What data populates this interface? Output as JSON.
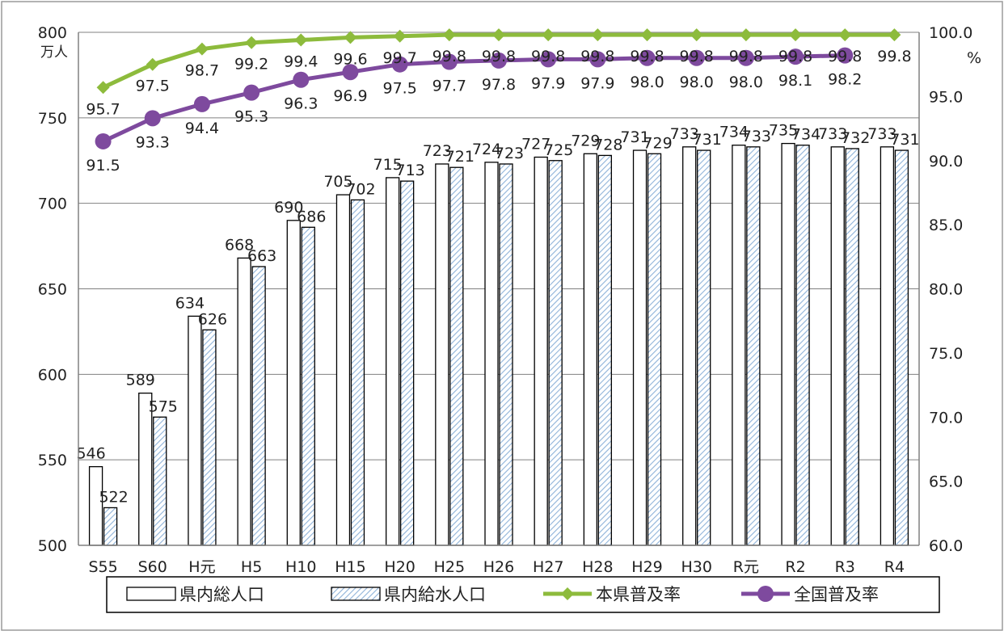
{
  "chart_data": {
    "type": "bar",
    "categories": [
      "S55",
      "S60",
      "H元",
      "H5",
      "H10",
      "H15",
      "H20",
      "H25",
      "H26",
      "H27",
      "H28",
      "H29",
      "H30",
      "R元",
      "R2",
      "R3",
      "R4"
    ],
    "series": [
      {
        "name": "県内総人口",
        "kind": "bar",
        "axis": "left",
        "style": "outline",
        "values": [
          546,
          589,
          634,
          668,
          690,
          705,
          715,
          723,
          724,
          727,
          729,
          731,
          733,
          734,
          735,
          733,
          733
        ]
      },
      {
        "name": "県内給水人口",
        "kind": "bar",
        "axis": "left",
        "style": "hatched",
        "values": [
          522,
          575,
          626,
          663,
          686,
          702,
          713,
          721,
          723,
          725,
          728,
          729,
          731,
          733,
          734,
          732,
          731
        ]
      },
      {
        "name": "本県普及率",
        "kind": "line",
        "axis": "right",
        "marker": "diamond",
        "values": [
          95.7,
          97.5,
          98.7,
          99.2,
          99.4,
          99.6,
          99.7,
          99.8,
          99.8,
          99.8,
          99.8,
          99.8,
          99.8,
          99.8,
          99.8,
          99.8,
          99.8
        ]
      },
      {
        "name": "全国普及率",
        "kind": "line",
        "axis": "right",
        "marker": "circle",
        "values": [
          91.5,
          93.3,
          94.4,
          95.3,
          96.3,
          96.9,
          97.5,
          97.7,
          97.8,
          97.9,
          97.9,
          98.0,
          98.0,
          98.0,
          98.1,
          98.2,
          null
        ]
      }
    ],
    "left_axis": {
      "unit": "万人",
      "min": 500,
      "max": 800,
      "ticks": [
        "500",
        "550",
        "600",
        "650",
        "700",
        "750",
        "800"
      ]
    },
    "right_axis": {
      "unit": "%",
      "min": 60,
      "max": 100,
      "ticks": [
        "60.0",
        "65.0",
        "70.0",
        "75.0",
        "80.0",
        "85.0",
        "90.0",
        "95.0",
        "100.0"
      ]
    },
    "grid": true,
    "legend_position": "bottom",
    "colors": {
      "line_prefecture": "#8DBB3C",
      "line_national": "#7E4A9E",
      "hatch": "#8FB3D9",
      "grid": "#808080"
    }
  }
}
